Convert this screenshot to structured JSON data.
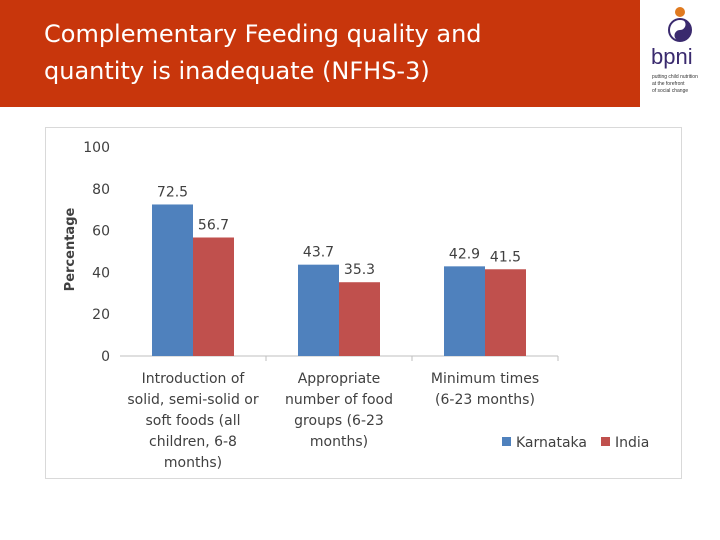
{
  "slide": {
    "title_line1": "Complementary Feeding quality and",
    "title_line2": "quantity is inadequate (NFHS-3)"
  },
  "logo": {
    "name": "bpni",
    "tagline": [
      "putting child nutrition",
      "at the forefront",
      "of social change"
    ]
  },
  "chart_data": {
    "type": "bar",
    "title": "",
    "xlabel": "",
    "ylabel": "Percentage",
    "ylim": [
      0,
      100
    ],
    "yticks": [
      0,
      20,
      40,
      60,
      80,
      100
    ],
    "categories": [
      [
        "Introduction of",
        "solid, semi-solid or",
        "soft foods (all",
        "children, 6-8",
        "months)"
      ],
      [
        "Appropriate",
        "number of food",
        "groups (6-23",
        "months)"
      ],
      [
        "Minimum times",
        "(6-23 months)"
      ]
    ],
    "series": [
      {
        "name": "Karnataka",
        "color": "#4f81bd",
        "values": [
          72.5,
          43.7,
          42.9
        ]
      },
      {
        "name": "India",
        "color": "#c0504d",
        "values": [
          56.7,
          35.3,
          41.5
        ]
      }
    ],
    "legend_position": "bottom-right",
    "grid": false
  }
}
